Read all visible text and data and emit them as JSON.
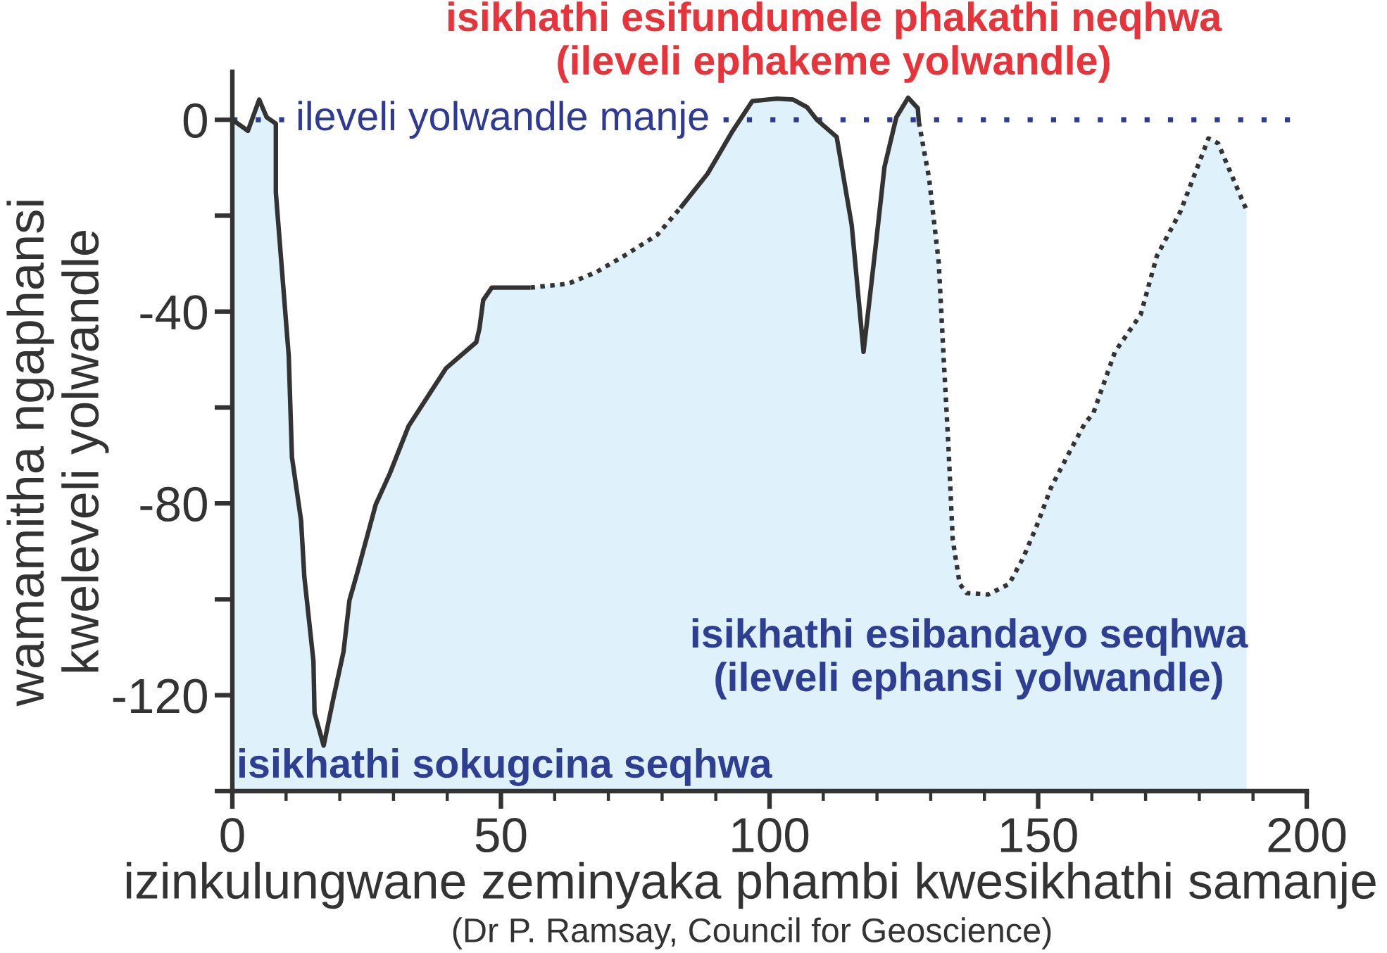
{
  "chart_data": {
    "type": "area",
    "xlabel": "izinkulungwane zeminyaka phambi kwesikhathi samanje",
    "ylabel": "wamamitha ngaphansi\nkweleveli yolwandle",
    "xlim": [
      0,
      200
    ],
    "ylim": [
      -140,
      10
    ],
    "xticks": [
      0,
      {
        "value": 10,
        "label": null
      },
      {
        "value": 20,
        "label": null
      },
      {
        "value": 30,
        "label": null
      },
      {
        "value": 40,
        "label": null
      },
      50,
      {
        "value": 60,
        "label": null
      },
      {
        "value": 70,
        "label": null
      },
      {
        "value": 80,
        "label": null
      },
      {
        "value": 90,
        "label": null
      },
      100,
      {
        "value": 110,
        "label": null
      },
      {
        "value": 120,
        "label": null
      },
      {
        "value": 130,
        "label": null
      },
      {
        "value": 140,
        "label": null
      },
      150,
      {
        "value": 160,
        "label": null
      },
      {
        "value": 170,
        "label": null
      },
      {
        "value": 180,
        "label": null
      },
      {
        "value": 190,
        "label": null
      },
      200
    ],
    "yticks": [
      {
        "value": -140,
        "label": null
      },
      -120,
      {
        "value": -100,
        "label": null
      },
      -80,
      {
        "value": -60,
        "label": null
      },
      -40,
      {
        "value": -20,
        "label": null
      },
      0
    ],
    "series": [
      {
        "color": "#dff1fb",
        "line_style": "solid",
        "x": [
          0,
          2.9,
          5,
          6.4,
          8.1,
          8.1,
          10.5,
          11.1,
          12.8,
          13.4,
          15.1,
          15.3,
          17,
          18.8,
          20.7,
          21.8,
          23.3,
          26.7,
          29.3,
          32.8,
          39.8,
          45.4,
          46,
          46.7,
          48.3,
          55.5
        ],
        "values": [
          0,
          -2.3,
          4.2,
          0.5,
          -0.8,
          -15.2,
          -49.3,
          -70.4,
          -83.6,
          -95.3,
          -112.9,
          -123.7,
          -130.5,
          -120.7,
          -110.9,
          -100.2,
          -94.3,
          -80.2,
          -73.8,
          -63.9,
          -51.8,
          -46.4,
          -43.5,
          -37.6,
          -35,
          -35
        ]
      },
      {
        "color": "#dff1fb",
        "line_style": "dotted",
        "x": [
          55.5,
          62.5,
          67.7,
          72.9,
          79.1,
          83.4
        ],
        "values": [
          -35,
          -34.2,
          -31.8,
          -28.4,
          -24,
          -18.4
        ]
      },
      {
        "color": "#dff1fb",
        "line_style": "solid",
        "x": [
          83.4,
          88.5,
          93.1,
          96.8,
          101.4,
          104.4,
          107,
          108.8,
          112.5,
          115.3,
          117.5,
          119.7,
          121.4,
          123.6,
          125.8,
          127.6,
          127.8
        ],
        "values": [
          -18.4,
          -11.2,
          -2.4,
          3.9,
          4.4,
          4.2,
          2.6,
          0,
          -3.6,
          -22,
          -48.4,
          -26.9,
          -9.8,
          0.5,
          4.6,
          2.4,
          -0.5
        ]
      },
      {
        "color": "#dff1fb",
        "line_style": "dotted",
        "x": [
          127.8,
          129.7,
          131.5,
          132.4,
          133.3,
          134.1,
          135.4,
          136.7,
          140.7,
          144.6,
          147.2,
          149.8,
          152.4,
          155.5,
          158.6,
          160.3,
          164.3,
          169.1,
          172.1,
          176.5,
          181.7,
          183.5,
          188.7
        ],
        "values": [
          -0.5,
          -12.2,
          -29.8,
          -49.4,
          -68,
          -87.5,
          -96.8,
          -98.7,
          -99,
          -96.8,
          -91.4,
          -84.5,
          -76.7,
          -70,
          -63.5,
          -61.1,
          -48.4,
          -40.6,
          -28.4,
          -19.1,
          -3.9,
          -4.9,
          -18.6
        ]
      }
    ],
    "ref_lines": [
      {
        "axis": "y",
        "value": 0,
        "label": "ileveli yolwandle manje",
        "color": "#2e3a93",
        "line_style": "dotted"
      }
    ],
    "annotations": [
      "isikhathi esifundumele phakathi neqhwa\n(ileveli ephakeme yolwandle)",
      "isikhathi esibandayo seqhwa\n(ileveli ephansi yolwandle)",
      "isikhathi sokugcina seqhwa",
      "(Dr P. Ramsay, Council for Geoscience)"
    ]
  }
}
